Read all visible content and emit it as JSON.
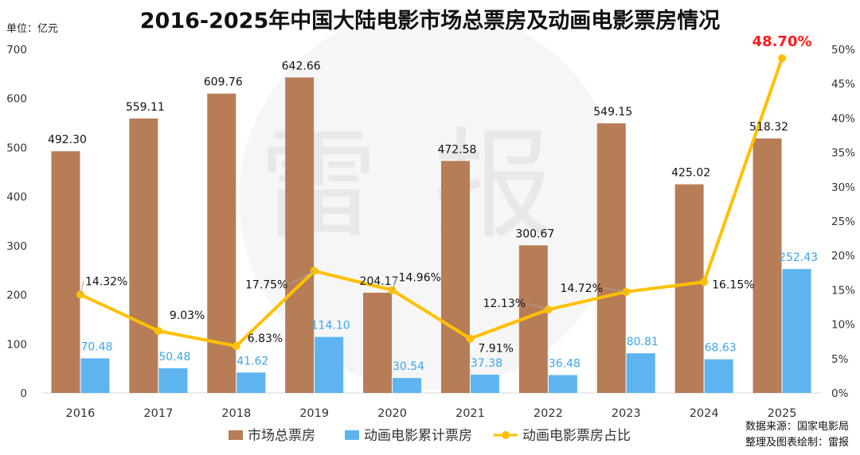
{
  "chart_data": {
    "type": "bar",
    "title": "2016-2025年中国大陆电影市场总票房及动画电影票房情况",
    "unit_label": "单位：亿元",
    "categories": [
      "2016",
      "2017",
      "2018",
      "2019",
      "2020",
      "2021",
      "2022",
      "2023",
      "2024",
      "2025"
    ],
    "ylim": [
      0,
      700
    ],
    "yticks": [
      0,
      100,
      200,
      300,
      400,
      500,
      600,
      700
    ],
    "y2lim": [
      0,
      50
    ],
    "y2ticks": [
      0,
      5,
      10,
      15,
      20,
      25,
      30,
      35,
      40,
      45,
      50
    ],
    "y2tick_labels": [
      "0%",
      "5%",
      "10%",
      "15%",
      "20%",
      "25%",
      "30%",
      "35%",
      "40%",
      "45%",
      "50%"
    ],
    "grid": false,
    "legend_position": "bottom",
    "series": [
      {
        "name": "市场总票房",
        "type": "bar",
        "axis": "left",
        "color": "#b77d57",
        "values": [
          492.3,
          559.11,
          609.76,
          642.66,
          204.17,
          472.58,
          300.67,
          549.15,
          425.02,
          518.32
        ],
        "labels": [
          "492.30",
          "559.11",
          "609.76",
          "642.66",
          "204.17",
          "472.58",
          "300.67",
          "549.15",
          "425.02",
          "518.32"
        ]
      },
      {
        "name": "动画电影累计票房",
        "type": "bar",
        "axis": "left",
        "color": "#5db4ef",
        "values": [
          70.48,
          50.48,
          41.62,
          114.1,
          30.54,
          37.38,
          36.48,
          80.81,
          68.63,
          252.43
        ],
        "labels": [
          "70.48",
          "50.48",
          "41.62",
          "114.10",
          "30.54",
          "37.38",
          "36.48",
          "80.81",
          "68.63",
          "252.43"
        ]
      },
      {
        "name": "动画电影票房占比",
        "type": "line",
        "axis": "right",
        "color": "#ffc000",
        "values": [
          14.32,
          9.03,
          6.83,
          17.75,
          14.96,
          7.91,
          12.13,
          14.72,
          16.15,
          48.7
        ],
        "labels": [
          "14.32%",
          "9.03%",
          "6.83%",
          "17.75%",
          "14.96%",
          "7.91%",
          "12.13%",
          "14.72%",
          "16.15%",
          "48.70%"
        ]
      }
    ],
    "highlight_color": "#ff1a1a"
  },
  "source": {
    "line1": "数据来源：国家电影局",
    "line2": "整理及图表绘制：雷报"
  },
  "watermark": {
    "chars": [
      "雷",
      "报"
    ]
  }
}
